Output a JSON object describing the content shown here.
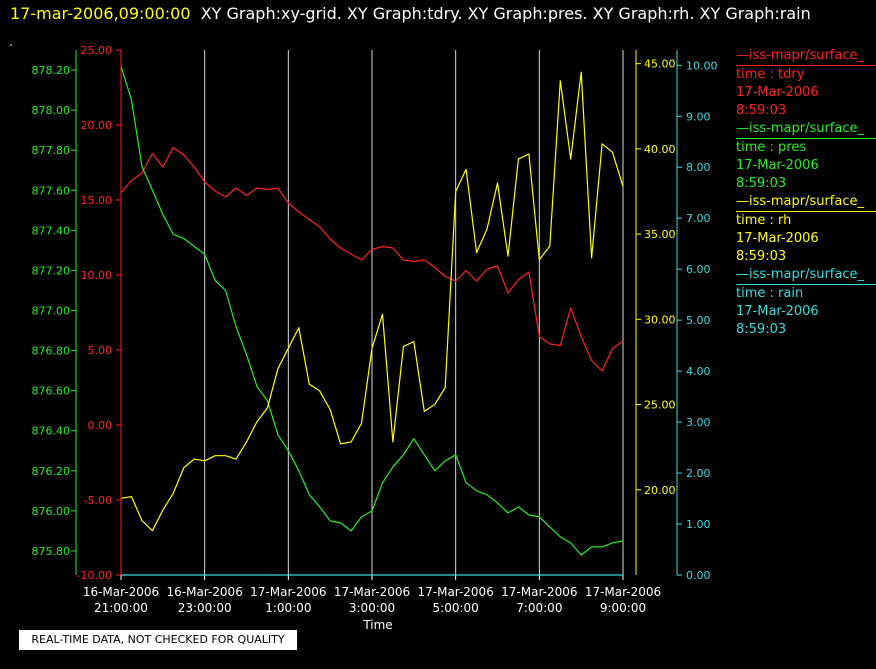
{
  "header": {
    "timestamp": "17-mar-2006,09:00:00",
    "titles": "XY Graph:xy-grid.  XY Graph:tdry.  XY Graph:pres.  XY Graph:rh.  XY Graph:rain",
    "dot": "."
  },
  "quality_note": "REAL-TIME DATA, NOT CHECKED FOR QUALITY",
  "legend": [
    {
      "source": "—iss-mapr/surface_",
      "variable": "time : tdry",
      "date": "17-Mar-2006",
      "time": "8:59:03",
      "color": "#ff2020"
    },
    {
      "source": "—iss-mapr/surface_",
      "variable": "time : pres",
      "date": "17-Mar-2006",
      "time": "8:59:03",
      "color": "#22ee22"
    },
    {
      "source": "—iss-mapr/surface_",
      "variable": "time : rh",
      "date": "17-Mar-2006",
      "time": "8:59:03",
      "color": "#ffff00"
    },
    {
      "source": "—iss-mapr/surface_",
      "variable": "time : rain",
      "date": "17-Mar-2006",
      "time": "8:59:03",
      "color": "#33dddd"
    }
  ],
  "chart_data": {
    "type": "line",
    "xlabel": "Time",
    "x_ticks": [
      {
        "date": "16-Mar-2006",
        "time": "21:00:00"
      },
      {
        "date": "16-Mar-2006",
        "time": "23:00:00"
      },
      {
        "date": "17-Mar-2006",
        "time": "1:00:00"
      },
      {
        "date": "17-Mar-2006",
        "time": "3:00:00"
      },
      {
        "date": "17-Mar-2006",
        "time": "5:00:00"
      },
      {
        "date": "17-Mar-2006",
        "time": "7:00:00"
      },
      {
        "date": "17-Mar-2006",
        "time": "9:00:00"
      }
    ],
    "x_range_hours": [
      0,
      12
    ],
    "grid": "vertical",
    "axes": {
      "tdry": {
        "color": "#ff2020",
        "ylim": [
          -10,
          25
        ],
        "ticks": [
          "25.00",
          "20.00",
          "15.00",
          "10.00",
          "5.00",
          "0.00",
          "-5.00",
          "-10.00"
        ]
      },
      "pres": {
        "color": "#22ee22",
        "ylim": [
          875.68,
          878.3
        ],
        "ticks": [
          "878.20",
          "878.00",
          "877.80",
          "877.60",
          "877.40",
          "877.20",
          "877.00",
          "876.80",
          "876.60",
          "876.40",
          "876.20",
          "876.00",
          "875.80"
        ]
      },
      "rh": {
        "color": "#ffff00",
        "ylim": [
          15,
          45.8
        ],
        "ticks": [
          "45.00",
          "40.00",
          "35.00",
          "30.00",
          "25.00",
          "20.00"
        ]
      },
      "rain": {
        "color": "#33dddd",
        "ylim": [
          0,
          10.3
        ],
        "ticks": [
          "10.00",
          "9.00",
          "8.00",
          "7.00",
          "6.00",
          "5.00",
          "4.00",
          "3.00",
          "2.00",
          "1.00",
          "0.00"
        ]
      }
    },
    "series": [
      {
        "name": "tdry",
        "axis": "tdry",
        "color": "#ff2020",
        "x": [
          0,
          0.25,
          0.5,
          0.75,
          1.0,
          1.25,
          1.5,
          1.75,
          2.0,
          2.25,
          2.5,
          2.75,
          3.0,
          3.25,
          3.5,
          3.75,
          4.0,
          4.25,
          4.5,
          4.75,
          5.0,
          5.25,
          5.5,
          5.75,
          6.0,
          6.25,
          6.5,
          6.75,
          7.0,
          7.25,
          7.5,
          7.75,
          8.0,
          8.25,
          8.5,
          8.75,
          9.0,
          9.25,
          9.5,
          9.75,
          10.0,
          10.25,
          10.5,
          10.75,
          11.0,
          11.25,
          11.5,
          11.75,
          12.0
        ],
        "y": [
          15.5,
          16.3,
          16.8,
          18.1,
          17.2,
          18.5,
          18.0,
          17.2,
          16.2,
          15.6,
          15.2,
          15.8,
          15.3,
          15.8,
          15.7,
          15.8,
          14.8,
          14.2,
          13.7,
          13.2,
          12.4,
          11.8,
          11.4,
          11.0,
          11.7,
          11.9,
          11.8,
          11.0,
          10.9,
          11.0,
          10.5,
          9.9,
          9.6,
          10.3,
          9.6,
          10.4,
          10.6,
          8.8,
          9.7,
          10.2,
          5.9,
          5.4,
          5.3,
          7.8,
          5.9,
          4.3,
          3.6,
          5.1,
          5.6
        ]
      },
      {
        "name": "pres",
        "axis": "pres",
        "color": "#22ee22",
        "x": [
          0,
          0.25,
          0.5,
          0.75,
          1.0,
          1.25,
          1.5,
          1.75,
          2.0,
          2.25,
          2.5,
          2.75,
          3.0,
          3.25,
          3.5,
          3.75,
          4.0,
          4.25,
          4.5,
          4.75,
          5.0,
          5.25,
          5.5,
          5.75,
          6.0,
          6.25,
          6.5,
          6.75,
          7.0,
          7.25,
          7.5,
          7.75,
          8.0,
          8.25,
          8.5,
          8.75,
          9.0,
          9.25,
          9.5,
          9.75,
          10.0,
          10.25,
          10.5,
          10.75,
          11.0,
          11.25,
          11.5,
          11.75,
          12.0
        ],
        "y": [
          878.22,
          878.05,
          877.72,
          877.6,
          877.48,
          877.38,
          877.36,
          877.32,
          877.28,
          877.15,
          877.1,
          876.92,
          876.78,
          876.62,
          876.55,
          876.38,
          876.3,
          876.2,
          876.08,
          876.02,
          875.95,
          875.94,
          875.9,
          875.97,
          876.0,
          876.14,
          876.22,
          876.28,
          876.36,
          876.28,
          876.2,
          876.25,
          876.28,
          876.14,
          876.1,
          876.08,
          876.04,
          875.99,
          876.02,
          875.98,
          875.97,
          875.92,
          875.87,
          875.84,
          875.78,
          875.82,
          875.82,
          875.84,
          875.85
        ]
      },
      {
        "name": "rh",
        "axis": "rh",
        "color": "#ffff00",
        "x": [
          0,
          0.25,
          0.5,
          0.75,
          1.0,
          1.25,
          1.5,
          1.75,
          2.0,
          2.25,
          2.5,
          2.75,
          3.0,
          3.25,
          3.5,
          3.75,
          4.0,
          4.25,
          4.5,
          4.75,
          5.0,
          5.25,
          5.5,
          5.75,
          6.0,
          6.25,
          6.5,
          6.75,
          7.0,
          7.25,
          7.5,
          7.75,
          8.0,
          8.25,
          8.5,
          8.75,
          9.0,
          9.25,
          9.5,
          9.75,
          10.0,
          10.25,
          10.5,
          10.75,
          11.0,
          11.25,
          11.5,
          11.75,
          12.0
        ],
        "y": [
          19.5,
          19.6,
          18.2,
          17.6,
          18.8,
          19.8,
          21.3,
          21.8,
          21.7,
          22.0,
          22.0,
          21.8,
          22.8,
          24.0,
          24.8,
          27.1,
          28.3,
          29.5,
          26.2,
          25.8,
          24.7,
          22.7,
          22.8,
          23.9,
          28.3,
          30.3,
          22.8,
          28.4,
          28.7,
          24.6,
          25.0,
          26.0,
          37.5,
          38.8,
          33.9,
          35.3,
          38.0,
          33.7,
          39.4,
          39.7,
          33.5,
          34.3,
          44.0,
          39.4,
          44.5,
          33.6,
          40.3,
          39.8,
          37.8
        ]
      },
      {
        "name": "rain",
        "axis": "rain",
        "color": "#33dddd",
        "x": [
          0,
          12
        ],
        "y": [
          0,
          0
        ]
      }
    ]
  }
}
